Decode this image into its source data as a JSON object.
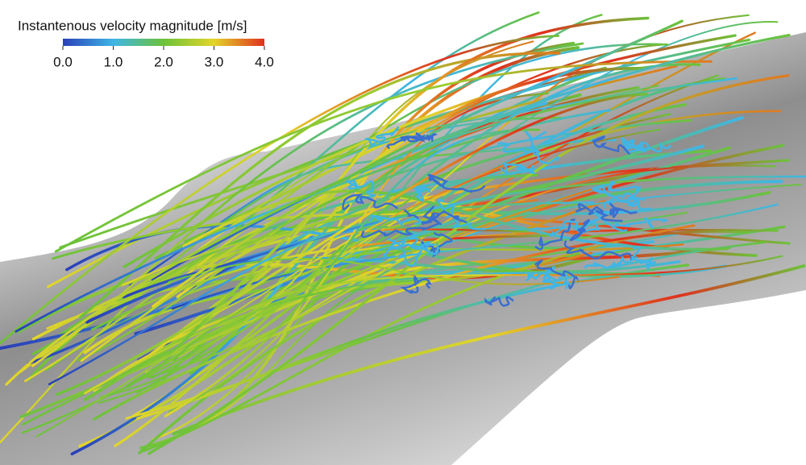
{
  "colorbar": {
    "title": "Instantenous velocity magnitude [m/s]",
    "ticks": [
      "0.0",
      "1.0",
      "2.0",
      "3.0",
      "4.0"
    ]
  }
}
